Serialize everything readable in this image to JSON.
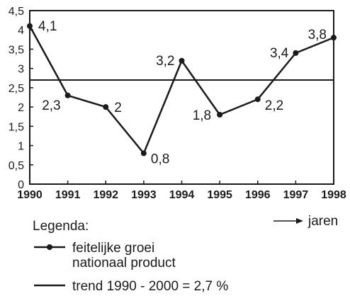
{
  "chart_data": {
    "type": "line",
    "categories": [
      "1990",
      "1991",
      "1992",
      "1993",
      "1994",
      "1995",
      "1996",
      "1997",
      "1998"
    ],
    "series": [
      {
        "name": "feitelijke groei nationaal product",
        "values": [
          4.1,
          2.3,
          2,
          0.8,
          3.2,
          1.8,
          2.2,
          3.4,
          3.8
        ],
        "labels": [
          "4,1",
          "2,3",
          "2",
          "0,8",
          "3,2",
          "1,8",
          "2,2",
          "3,4",
          "3,8"
        ]
      }
    ],
    "trend": {
      "name": "trend 1990 - 2000 = 2,7 %",
      "value": 2.7
    },
    "ylim": [
      0,
      4.5
    ],
    "yticks": [
      0,
      0.5,
      1,
      1.5,
      2,
      2.5,
      3,
      3.5,
      4,
      4.5
    ],
    "ytick_labels": [
      "0",
      "0,5",
      "1",
      "1,5",
      "2",
      "2,5",
      "3",
      "3,5",
      "4",
      "4,5"
    ],
    "xlabel": "jaren",
    "legend": {
      "title": "Legenda:",
      "entries": [
        "feitelijke groei",
        "nationaal product",
        "trend 1990 - 2000 = 2,7 %"
      ],
      "placement": "bottom-left"
    },
    "grid": false,
    "colors": {
      "line": "#1a1a1a",
      "background": "#ffffff"
    }
  }
}
